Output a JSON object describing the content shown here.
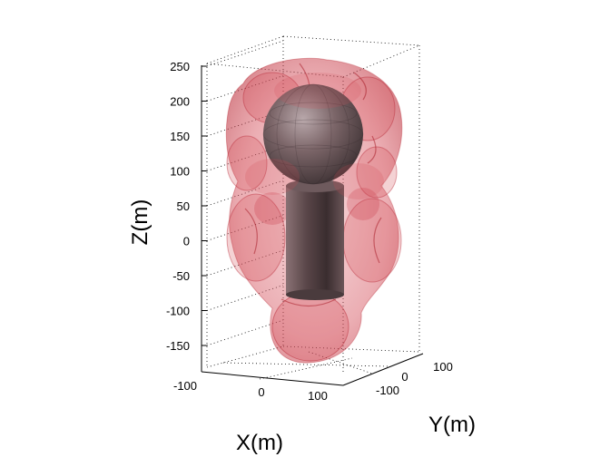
{
  "chart_data": {
    "type": "3d-surface",
    "title": "",
    "xlabel": "X(m)",
    "ylabel": "Y(m)",
    "zlabel": "Z(m)",
    "x_ticks": [
      "-100",
      "0",
      "100"
    ],
    "y_ticks": [
      "-100",
      "0",
      "100"
    ],
    "z_ticks": [
      "250",
      "200",
      "150",
      "100",
      "50",
      "0",
      "-50",
      "-100",
      "-150"
    ],
    "xlim": [
      -150,
      150
    ],
    "ylim": [
      -150,
      150
    ],
    "zlim": [
      -190,
      260
    ],
    "grid": true,
    "objects": [
      {
        "name": "sphere",
        "center": [
          0,
          0,
          150
        ],
        "radius": 55,
        "color": "#6e5a5e"
      },
      {
        "name": "cylinder",
        "center": [
          0,
          0,
          -20
        ],
        "radius": 40,
        "z_range": [
          -90,
          80
        ],
        "color": "#5e4e51"
      },
      {
        "name": "envelope",
        "color": "#d9505a",
        "opacity": 0.35
      }
    ]
  }
}
